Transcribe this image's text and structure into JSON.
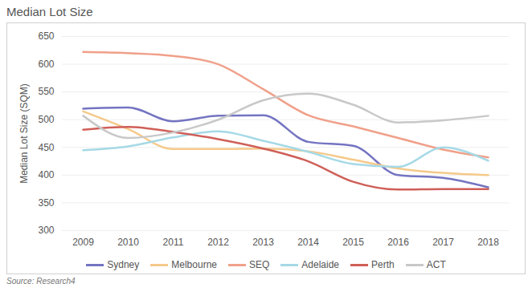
{
  "chart_data": {
    "type": "line",
    "title": "Median Lot Size",
    "y_label": "Median Lot Size (SQM)",
    "source": "Source: Research4",
    "x": [
      2009,
      2010,
      2011,
      2012,
      2013,
      2014,
      2015,
      2016,
      2017,
      2018
    ],
    "xlim": [
      2009,
      2018
    ],
    "xticks": [
      2009,
      2010,
      2011,
      2012,
      2013,
      2014,
      2015,
      2016,
      2017,
      2018
    ],
    "ylim": [
      300,
      650
    ],
    "yticks": [
      300,
      350,
      400,
      450,
      500,
      550,
      600,
      650
    ],
    "grid": true,
    "legend": "bottom",
    "series": [
      {
        "name": "Sydney",
        "color": "#7474c2",
        "values": [
          520,
          522,
          497,
          507,
          508,
          460,
          453,
          400,
          395,
          378
        ]
      },
      {
        "name": "Melbourne",
        "color": "#f5c98a",
        "values": [
          515,
          483,
          447,
          447,
          448,
          443,
          428,
          412,
          404,
          400
        ]
      },
      {
        "name": "SEQ",
        "color": "#f0a08a",
        "values": [
          622,
          620,
          615,
          600,
          555,
          508,
          488,
          467,
          446,
          432
        ]
      },
      {
        "name": "Adelaide",
        "color": "#a6d9e6",
        "values": [
          445,
          452,
          468,
          479,
          462,
          442,
          420,
          415,
          450,
          426
        ]
      },
      {
        "name": "Perth",
        "color": "#cf5f58",
        "values": [
          482,
          487,
          478,
          465,
          448,
          425,
          388,
          374,
          375,
          375
        ]
      },
      {
        "name": "ACT",
        "color": "#c8c8c8",
        "values": [
          507,
          467,
          477,
          500,
          535,
          547,
          527,
          495,
          499,
          507
        ]
      }
    ]
  }
}
